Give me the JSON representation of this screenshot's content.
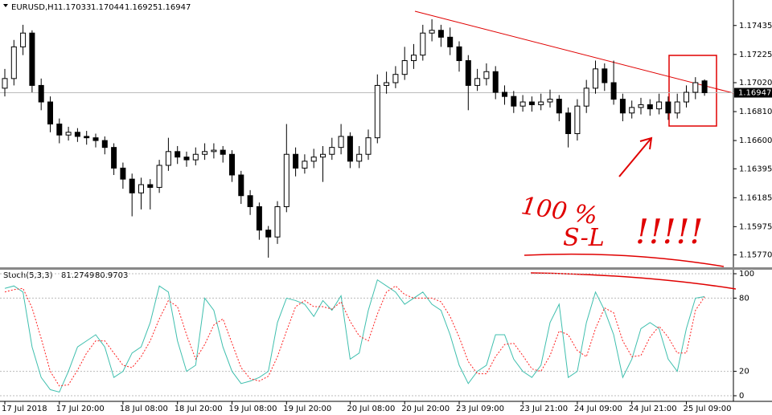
{
  "chart_data": [
    {
      "type": "candlestick",
      "symbol": "EURUSD,H1",
      "open": [
        1.1698,
        1.1705,
        1.1728,
        1.1738,
        1.17,
        1.1688,
        1.1672,
        1.1664,
        1.1666,
        1.1663,
        1.1662,
        1.166,
        1.1655,
        1.164,
        1.1632,
        1.1622,
        1.1628,
        1.1626,
        1.1642,
        1.1652,
        1.1648,
        1.1646,
        1.165,
        1.1652,
        1.1653,
        1.165,
        1.1635,
        1.162,
        1.1612,
        1.1595,
        1.159,
        1.1612,
        1.165,
        1.164,
        1.1645,
        1.1648,
        1.165,
        1.1655,
        1.1663,
        1.1645,
        1.165,
        1.1662,
        1.17,
        1.1702,
        1.1708,
        1.1718,
        1.1722,
        1.1738,
        1.174,
        1.1735,
        1.1728,
        1.1718,
        1.17,
        1.1705,
        1.171,
        1.1695,
        1.1692,
        1.1685,
        1.1688,
        1.1686,
        1.1688,
        1.169,
        1.168,
        1.1665,
        1.1685,
        1.1698,
        1.1712,
        1.1702,
        1.169,
        1.168,
        1.1684,
        1.1686,
        1.1683,
        1.1688,
        1.168,
        1.1688,
        1.1695,
        1.17033
      ],
      "high": [
        1.1712,
        1.1733,
        1.1744,
        1.174,
        1.1705,
        1.1692,
        1.1676,
        1.167,
        1.1669,
        1.1667,
        1.1665,
        1.1663,
        1.1658,
        1.1644,
        1.1636,
        1.1633,
        1.1632,
        1.1646,
        1.1662,
        1.1656,
        1.1652,
        1.1655,
        1.1658,
        1.1658,
        1.1656,
        1.1653,
        1.1638,
        1.1624,
        1.1615,
        1.1598,
        1.1616,
        1.1672,
        1.1655,
        1.165,
        1.1654,
        1.1656,
        1.1662,
        1.1672,
        1.1666,
        1.1656,
        1.1668,
        1.1708,
        1.171,
        1.1714,
        1.1728,
        1.173,
        1.1744,
        1.1748,
        1.1744,
        1.1742,
        1.1732,
        1.1722,
        1.1712,
        1.1716,
        1.1714,
        1.17,
        1.1696,
        1.1693,
        1.1692,
        1.1694,
        1.1697,
        1.1693,
        1.1684,
        1.169,
        1.1704,
        1.1718,
        1.1716,
        1.1718,
        1.1694,
        1.1689,
        1.1691,
        1.169,
        1.1694,
        1.1692,
        1.1694,
        1.17,
        1.1706,
        1.17044
      ],
      "low": [
        1.1692,
        1.17,
        1.1722,
        1.1695,
        1.1682,
        1.1666,
        1.1658,
        1.166,
        1.1659,
        1.1657,
        1.1655,
        1.165,
        1.1635,
        1.1625,
        1.1605,
        1.161,
        1.161,
        1.1622,
        1.1638,
        1.1643,
        1.1641,
        1.1642,
        1.1646,
        1.1647,
        1.1644,
        1.163,
        1.1614,
        1.1606,
        1.1588,
        1.1575,
        1.1585,
        1.1608,
        1.1634,
        1.1636,
        1.164,
        1.163,
        1.1646,
        1.165,
        1.164,
        1.164,
        1.1646,
        1.1658,
        1.1694,
        1.1698,
        1.1704,
        1.1712,
        1.1718,
        1.1732,
        1.1728,
        1.1722,
        1.171,
        1.1682,
        1.1696,
        1.17,
        1.169,
        1.1686,
        1.168,
        1.1681,
        1.1681,
        1.1682,
        1.1684,
        1.1674,
        1.1655,
        1.166,
        1.168,
        1.1694,
        1.1696,
        1.1686,
        1.1674,
        1.1676,
        1.1679,
        1.1678,
        1.1679,
        1.1675,
        1.1676,
        1.1684,
        1.169,
        1.16925
      ],
      "close": [
        1.1705,
        1.1728,
        1.1738,
        1.17,
        1.1688,
        1.1672,
        1.1664,
        1.1666,
        1.1663,
        1.1662,
        1.166,
        1.1655,
        1.164,
        1.1632,
        1.1622,
        1.1628,
        1.1626,
        1.1642,
        1.1652,
        1.1648,
        1.1646,
        1.165,
        1.1652,
        1.1653,
        1.165,
        1.1635,
        1.162,
        1.1612,
        1.1595,
        1.159,
        1.1612,
        1.165,
        1.164,
        1.1645,
        1.1648,
        1.165,
        1.1655,
        1.1663,
        1.1645,
        1.165,
        1.1662,
        1.17,
        1.1702,
        1.1708,
        1.1718,
        1.1722,
        1.1738,
        1.174,
        1.1735,
        1.1728,
        1.1718,
        1.17,
        1.1705,
        1.171,
        1.1695,
        1.1692,
        1.1685,
        1.1688,
        1.1686,
        1.1688,
        1.169,
        1.168,
        1.1665,
        1.1685,
        1.1698,
        1.1712,
        1.1702,
        1.169,
        1.168,
        1.1684,
        1.1686,
        1.1683,
        1.1688,
        1.168,
        1.1688,
        1.1695,
        1.1702,
        1.16947
      ],
      "up_color": "#ffffff",
      "down_color": "#000000",
      "edge_color": "#000000",
      "ylim": [
        1.1568,
        1.1762
      ],
      "yticks": [
        1.17435,
        1.17225,
        {
          "value": 1.1702,
          "label": "1.17020"
        },
        {
          "value": 1.1681,
          "label": "1.16810"
        },
        {
          "value": 1.166,
          "label": "1.16600"
        },
        1.16395,
        1.16185,
        1.15975,
        {
          "value": 1.1577,
          "label": "1.15770"
        }
      ],
      "annotations": [
        "100 %",
        "S-L",
        "!!!!!"
      ]
    },
    {
      "type": "line",
      "indicator": "Stoch(5,3,3)",
      "categories": [
        "17 Jul 2018",
        null,
        null,
        null,
        null,
        null,
        "17 Jul 20:00",
        null,
        null,
        null,
        null,
        null,
        null,
        "18 Jul 08:00",
        null,
        null,
        null,
        null,
        null,
        "18 Jul 20:00",
        null,
        null,
        null,
        null,
        null,
        "19 Jul 08:00",
        null,
        null,
        null,
        null,
        null,
        "19 Jul 20:00",
        null,
        null,
        null,
        null,
        null,
        null,
        "20 Jul 08:00",
        null,
        null,
        null,
        null,
        null,
        "20 Jul 20:00",
        null,
        null,
        null,
        null,
        null,
        "23 Jul 09:00",
        null,
        null,
        null,
        null,
        null,
        null,
        "23 Jul 21:00",
        null,
        null,
        null,
        null,
        null,
        "24 Jul 09:00",
        null,
        null,
        null,
        null,
        null,
        "24 Jul 21:00",
        null,
        null,
        null,
        null,
        null,
        "25 Jul 09:00",
        null,
        null
      ],
      "series": [
        {
          "color": "#3fbfae",
          "dash": false,
          "values": [
            88,
            90,
            85,
            40,
            15,
            5,
            3,
            20,
            40,
            45,
            50,
            40,
            15,
            20,
            35,
            40,
            60,
            90,
            85,
            45,
            20,
            25,
            80,
            70,
            40,
            20,
            10,
            12,
            15,
            20,
            60,
            80,
            78,
            75,
            65,
            78,
            70,
            82,
            30,
            35,
            70,
            95,
            90,
            85,
            75,
            80,
            85,
            75,
            70,
            50,
            25,
            10,
            20,
            25,
            50,
            50,
            30,
            20,
            15,
            25,
            60,
            75,
            15,
            20,
            60,
            85,
            70,
            50,
            15,
            30,
            55,
            60,
            55,
            30,
            20,
            55,
            80,
            81.2749
          ]
        },
        {
          "color": "#ff2020",
          "dash": true,
          "values": [
            85,
            87,
            88,
            72,
            47,
            20,
            8,
            9,
            21,
            35,
            45,
            45,
            35,
            25,
            23,
            32,
            45,
            63,
            78,
            73,
            50,
            30,
            42,
            58,
            63,
            43,
            23,
            14,
            12,
            16,
            32,
            53,
            73,
            78,
            73,
            73,
            71,
            77,
            61,
            49,
            45,
            67,
            85,
            90,
            83,
            80,
            80,
            80,
            77,
            65,
            48,
            28,
            18,
            18,
            32,
            42,
            43,
            33,
            22,
            20,
            33,
            53,
            50,
            37,
            32,
            55,
            72,
            68,
            45,
            32,
            33,
            48,
            57,
            48,
            35,
            35,
            70,
            80.9703
          ]
        }
      ],
      "ylim": [
        -4.6,
        103.3
      ],
      "yticks": [
        100,
        80,
        20,
        0
      ],
      "grid": true
    }
  ]
}
